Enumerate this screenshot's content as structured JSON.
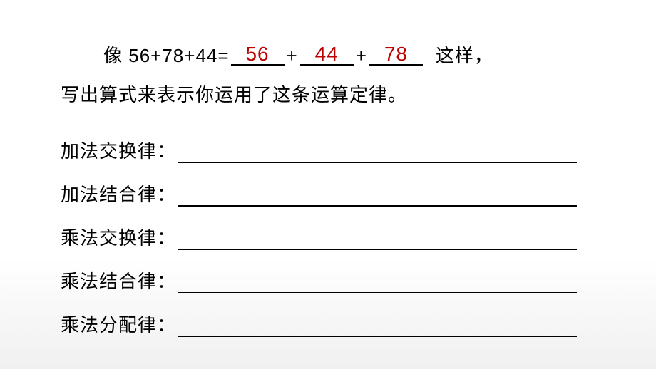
{
  "example": {
    "prefix": "像 ",
    "equation": "56+78+44=",
    "blank1": "56",
    "blank2": "44",
    "blank3": "78",
    "plus": "+",
    "suffix": "这样，",
    "blank_fill_color": "#c00000"
  },
  "instruction": "写出算式来表示你运用了这条运算定律。",
  "laws": {
    "row1": "加法交换律：",
    "row2": "加法结合律：",
    "row3": "乘法交换律：",
    "row4": "乘法结合律：",
    "row5": "乘法分配律："
  },
  "styling": {
    "background_gradient_top": "#ffffff",
    "background_gradient_bottom": "#f0f0f0",
    "text_color": "#000000",
    "underline_color": "#000000",
    "font_size_main": 26,
    "font_family": "Microsoft YaHei"
  }
}
